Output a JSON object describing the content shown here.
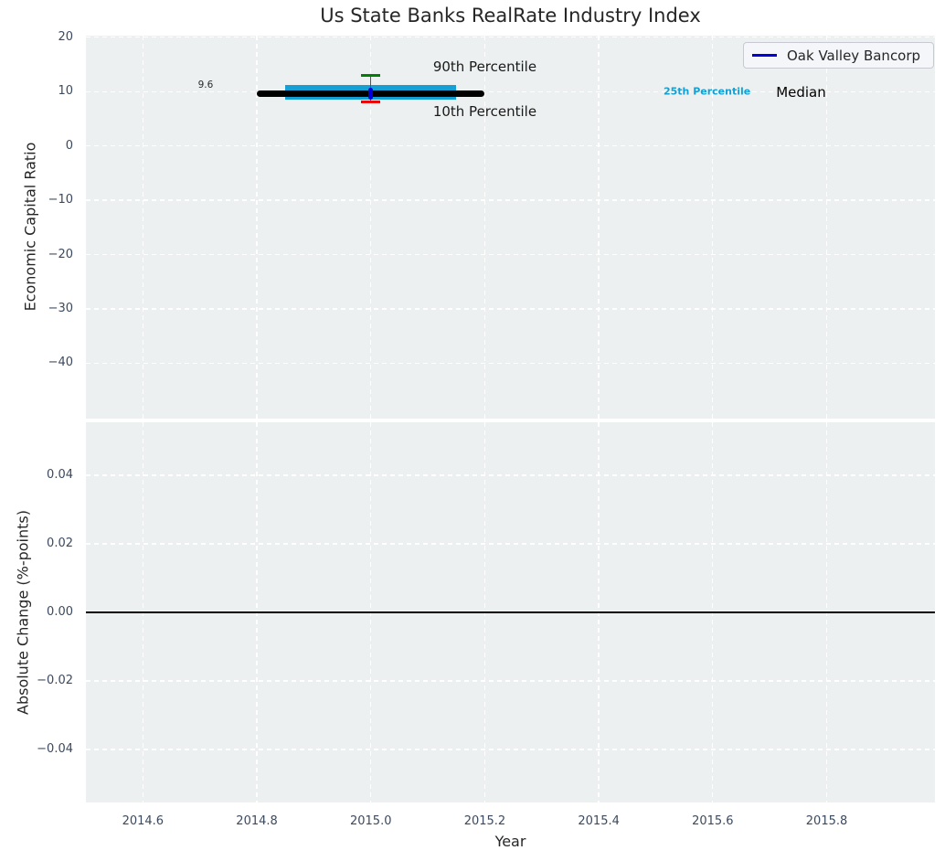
{
  "title": "Us State Banks RealRate Industry Index",
  "legend": {
    "label": "Oak Valley Bancorp",
    "line_color": "#0000dd"
  },
  "chart_data": [
    {
      "type": "line",
      "subplot": "economic-capital-ratio",
      "ylabel": "Economic Capital Ratio",
      "xlabel": "",
      "xlim": [
        2014.5,
        2015.99
      ],
      "ylim": [
        -50.2,
        20.3
      ],
      "xticks": [
        2014.6,
        2014.8,
        2015.0,
        2015.2,
        2015.4,
        2015.6,
        2015.8
      ],
      "xtick_labels": [],
      "yticks": [
        20,
        10,
        0,
        -10,
        -20,
        -30,
        -40
      ],
      "ytick_labels": [
        "20",
        "10",
        "0",
        "−10",
        "−20",
        "−30",
        "−40"
      ],
      "grid": {
        "style": "dashed",
        "color": "#ffffff"
      },
      "background": "#ecf0f1",
      "legend_position": "upper right",
      "industry_summary": {
        "x_center": 2015.0,
        "median": {
          "value": 9.6,
          "x_start": 2014.8,
          "x_end": 2015.2,
          "color": "#000000"
        },
        "iqr_band": {
          "p25": 8.5,
          "p75": 11.2,
          "x_start": 2014.85,
          "x_end": 2015.15,
          "color": "#14a0d4"
        },
        "whiskers": {
          "p90": {
            "value": 12.9,
            "color": "#008000"
          },
          "p10": {
            "value": 8.1,
            "color": "#ee0000"
          },
          "stem_color": "#555555"
        }
      },
      "series": [
        {
          "name": "Oak Valley Bancorp",
          "color": "#0000dd",
          "points": [
            {
              "x": 2015.0,
              "y": 9.6
            }
          ]
        }
      ],
      "annotations": [
        {
          "name": "median-value-label",
          "text": "9.6",
          "x": 2014.71,
          "y": 11.2,
          "color": "#2b2b2b",
          "size": 10.5,
          "bold": false
        },
        {
          "name": "p90-label",
          "text": "90th Percentile",
          "x": 2015.2,
          "y": 14.5,
          "color": "#1a1a1a",
          "size": 15,
          "bold": false
        },
        {
          "name": "p10-label",
          "text": "10th Percentile",
          "x": 2015.2,
          "y": 6.3,
          "color": "#1a1a1a",
          "size": 15,
          "bold": false
        },
        {
          "name": "p25-label",
          "text": "25th Percentile",
          "x": 2015.59,
          "y": 10.0,
          "color": "#14a0d4",
          "size": 11,
          "bold": true
        },
        {
          "name": "median-label",
          "text": "Median",
          "x": 2015.755,
          "y": 9.85,
          "color": "#000000",
          "size": 15,
          "bold": false
        }
      ]
    },
    {
      "type": "line",
      "subplot": "absolute-change",
      "ylabel": "Absolute Change (%-points)",
      "xlabel": "Year",
      "xlim": [
        2014.5,
        2015.99
      ],
      "ylim": [
        -0.0555,
        0.0555
      ],
      "xticks": [
        2014.6,
        2014.8,
        2015.0,
        2015.2,
        2015.4,
        2015.6,
        2015.8
      ],
      "xtick_labels": [
        "2014.6",
        "2014.8",
        "2015.0",
        "2015.2",
        "2015.4",
        "2015.6",
        "2015.8"
      ],
      "yticks": [
        0.04,
        0.02,
        0.0,
        -0.02,
        -0.04
      ],
      "ytick_labels": [
        "0.04",
        "0.02",
        "0.00",
        "−0.02",
        "−0.04"
      ],
      "grid": {
        "style": "dashed",
        "color": "#ffffff"
      },
      "background": "#ecf0f1",
      "zero_line": {
        "y": 0.0,
        "color": "#000000"
      },
      "series": [],
      "annotations": []
    }
  ],
  "tick_color": "#3b4a5e"
}
